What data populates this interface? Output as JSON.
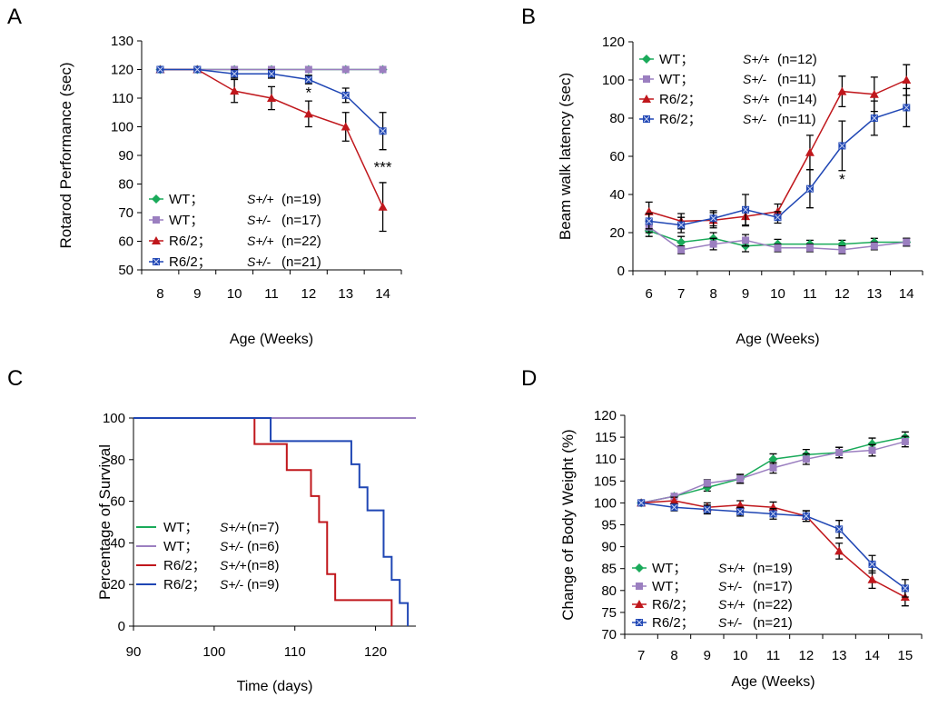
{
  "colors": {
    "wt_pp": "#1aaa5a",
    "wt_pm": "#9b7fc0",
    "r62_pp": "#c0171c",
    "r62_pm": "#1f46b4",
    "axis": "#000000"
  },
  "chart_data": [
    {
      "panel": "A",
      "type": "line",
      "xlabel": "Age (Weeks)",
      "ylabel": "Rotarod Performance (sec)",
      "ylim": [
        50,
        130
      ],
      "yticks": [
        50,
        60,
        70,
        80,
        90,
        100,
        110,
        120,
        130
      ],
      "x": [
        8,
        9,
        10,
        11,
        12,
        13,
        14
      ],
      "series": [
        {
          "name": "WT；",
          "genotype": "S+/+",
          "n": "(n=19)",
          "marker": "diamond",
          "color_key": "wt_pp",
          "values": [
            120,
            120,
            120,
            120,
            120,
            120,
            120
          ]
        },
        {
          "name": "WT；",
          "genotype": "S+/-",
          "n": "(n=17)",
          "marker": "square",
          "color_key": "wt_pm",
          "values": [
            120,
            120,
            120,
            120,
            120,
            120,
            120
          ]
        },
        {
          "name": "R6/2；",
          "genotype": "S+/+",
          "n": "(n=22)",
          "marker": "triangle",
          "color_key": "r62_pp",
          "values": [
            120,
            120,
            112.5,
            110,
            104.5,
            100,
            72
          ],
          "errors": [
            0,
            0,
            4,
            4,
            4.5,
            5,
            8.5
          ]
        },
        {
          "name": "R6/2；",
          "genotype": "S+/-",
          "n": "(n=21)",
          "marker": "square-x",
          "color_key": "r62_pm",
          "values": [
            120,
            120,
            118.5,
            118.5,
            116.5,
            111,
            98.5
          ],
          "errors": [
            0,
            0,
            1.5,
            1.5,
            1.5,
            2.5,
            6.5
          ]
        }
      ],
      "annotations": [
        {
          "text": "*",
          "x": 12,
          "y": 112
        },
        {
          "text": "***",
          "x": 14,
          "y": 86
        }
      ]
    },
    {
      "panel": "B",
      "type": "line",
      "xlabel": "Age (Weeks)",
      "ylabel": "Beam walk latency (sec)",
      "ylim": [
        0,
        120
      ],
      "yticks": [
        0,
        20,
        40,
        60,
        80,
        100,
        120
      ],
      "x": [
        6,
        7,
        8,
        9,
        10,
        11,
        12,
        13,
        14
      ],
      "series": [
        {
          "name": "WT；",
          "genotype": "S+/+",
          "n": "(n=12)",
          "marker": "diamond",
          "color_key": "wt_pp",
          "values": [
            21,
            15,
            17,
            13,
            14,
            14,
            14,
            15,
            15
          ],
          "errors": [
            3,
            3,
            3,
            3,
            2.5,
            2,
            2,
            2,
            2
          ]
        },
        {
          "name": "WT；",
          "genotype": "S+/-",
          "n": "(n=11)",
          "marker": "square",
          "color_key": "wt_pm",
          "values": [
            23,
            11,
            14,
            16,
            12,
            12,
            11,
            13,
            15
          ],
          "errors": [
            3,
            2,
            3,
            3,
            2,
            2,
            2,
            2,
            2
          ]
        },
        {
          "name": "R6/2；",
          "genotype": "S+/+",
          "n": "(n=14)",
          "marker": "triangle",
          "color_key": "r62_pp",
          "values": [
            31,
            26,
            26.5,
            28.5,
            31,
            62,
            94,
            92.5,
            100
          ],
          "errors": [
            5,
            4,
            4,
            5,
            4,
            9,
            8,
            9,
            8
          ]
        },
        {
          "name": "R6/2；",
          "genotype": "S+/-",
          "n": "(n=11)",
          "marker": "square-x",
          "color_key": "r62_pm",
          "values": [
            26,
            24,
            27.5,
            32,
            28,
            43,
            65.5,
            80,
            85.5
          ],
          "errors": [
            4,
            4,
            4,
            8,
            3,
            10,
            13,
            9,
            10
          ]
        }
      ],
      "annotations": [
        {
          "text": "*",
          "x": 12,
          "y": 48
        }
      ]
    },
    {
      "panel": "C",
      "type": "line",
      "step": true,
      "xlabel": "Time (days)",
      "ylabel": "Percentage of Survival",
      "xlim": [
        90,
        125
      ],
      "xticks": [
        90,
        100,
        110,
        120
      ],
      "ylim": [
        0,
        100
      ],
      "yticks": [
        0,
        20,
        40,
        60,
        80,
        100
      ],
      "series": [
        {
          "name": "WT；",
          "genotype": "S+/+",
          "n": "(n=7)",
          "color_key": "wt_pp",
          "x": [
            90,
            125
          ],
          "values": [
            100,
            100
          ]
        },
        {
          "name": "WT；",
          "genotype": "S+/-",
          "n": "(n=6)",
          "color_key": "wt_pm",
          "x": [
            90,
            125
          ],
          "values": [
            100,
            100
          ]
        },
        {
          "name": "R6/2；",
          "genotype": "S+/+",
          "n": "(n=8)",
          "color_key": "r62_pp",
          "x": [
            90,
            105,
            109,
            112,
            113,
            114,
            115,
            122
          ],
          "values": [
            100,
            87.5,
            75,
            62.5,
            50,
            25,
            12.5,
            0
          ]
        },
        {
          "name": "R6/2；",
          "genotype": "S+/-",
          "n": "(n=9)",
          "color_key": "r62_pm",
          "x": [
            90,
            107,
            117,
            118,
            119,
            121,
            122,
            123,
            124
          ],
          "values": [
            100,
            88.9,
            77.8,
            66.7,
            55.6,
            33.3,
            22.2,
            11.1,
            0
          ]
        }
      ]
    },
    {
      "panel": "D",
      "type": "line",
      "xlabel": "Age (Weeks)",
      "ylabel": "Change of  Body Weight (%)",
      "ylim": [
        70,
        120
      ],
      "yticks": [
        70,
        75,
        80,
        85,
        90,
        95,
        100,
        105,
        110,
        115,
        120
      ],
      "x": [
        7,
        8,
        9,
        10,
        11,
        12,
        13,
        14,
        15
      ],
      "series": [
        {
          "name": "WT；",
          "genotype": "S+/+",
          "n": "(n=19)",
          "marker": "diamond",
          "color_key": "wt_pp",
          "values": [
            100,
            101.5,
            103.5,
            105.5,
            110,
            111,
            111.5,
            113.5,
            115
          ],
          "errors": [
            0,
            0.5,
            0.8,
            1,
            1.2,
            1.2,
            1.2,
            1.3,
            1.2
          ]
        },
        {
          "name": "WT；",
          "genotype": "S+/-",
          "n": "(n=17)",
          "marker": "square",
          "color_key": "wt_pm",
          "values": [
            100,
            101.5,
            104.5,
            105.5,
            108,
            110,
            111.5,
            112,
            114
          ],
          "errors": [
            0,
            0.5,
            0.8,
            1,
            1.2,
            1.2,
            1.2,
            1.3,
            1.2
          ]
        },
        {
          "name": "R6/2；",
          "genotype": "S+/+",
          "n": "(n=22)",
          "marker": "triangle",
          "color_key": "r62_pp",
          "values": [
            100,
            100.5,
            99,
            99.5,
            99,
            97,
            89,
            82.5,
            78.5
          ],
          "errors": [
            0,
            0.8,
            1,
            1,
            1.2,
            1.2,
            1.8,
            2,
            2
          ]
        },
        {
          "name": "R6/2；",
          "genotype": "S+/-",
          "n": "(n=21)",
          "marker": "square-x",
          "color_key": "r62_pm",
          "values": [
            100,
            99,
            98.5,
            98,
            97.5,
            97,
            94,
            86,
            80.5
          ],
          "errors": [
            0,
            0.8,
            1,
            1,
            1.2,
            1.2,
            2,
            2,
            2
          ]
        }
      ]
    }
  ]
}
